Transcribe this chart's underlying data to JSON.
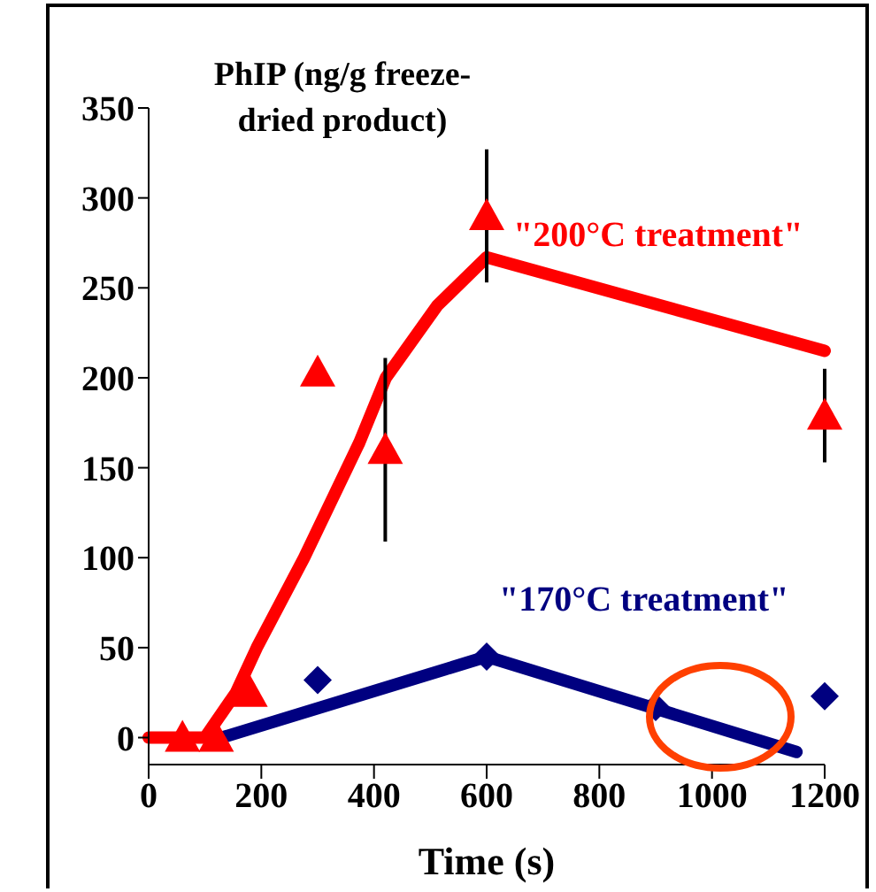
{
  "chart_data": {
    "type": "scatter",
    "ylabel": "PhIP (ng/g freeze-dried product)",
    "xlabel": "Time (s)",
    "xlim": [
      0,
      1200
    ],
    "xticks": [
      0,
      200,
      400,
      600,
      800,
      1000,
      1200
    ],
    "ylim": [
      -15,
      350
    ],
    "yticks": [
      0,
      50,
      100,
      150,
      200,
      250,
      300,
      350
    ],
    "grid": false,
    "legend": false,
    "series": [
      {
        "type": "line",
        "color": "#ff0000",
        "marker": "none",
        "x": [
          0,
          100,
          155,
          192,
          276,
          374,
          421,
          512,
          600,
          1200
        ],
        "values": [
          0,
          0,
          25,
          50,
          100,
          164,
          200,
          240,
          267,
          215
        ]
      },
      {
        "type": "line",
        "color": "#000080",
        "marker": "none",
        "x": [
          130,
          600,
          1150
        ],
        "values": [
          0,
          45,
          -8
        ]
      },
      {
        "type": "scatter",
        "name": "\"200°C treatment\"",
        "color": "#ff0000",
        "marker": "triangle",
        "x": [
          60,
          120,
          180,
          300,
          420,
          600,
          1200
        ],
        "values": [
          0,
          0,
          25,
          203,
          160,
          290,
          179
        ],
        "errors": [
          null,
          null,
          null,
          null,
          51,
          37,
          26
        ]
      },
      {
        "type": "scatter",
        "name": "\"170°C treatment\"",
        "color": "#000080",
        "marker": "diamond",
        "x": [
          300,
          600,
          900,
          1200
        ],
        "values": [
          32,
          45,
          17,
          23
        ]
      }
    ]
  }
}
